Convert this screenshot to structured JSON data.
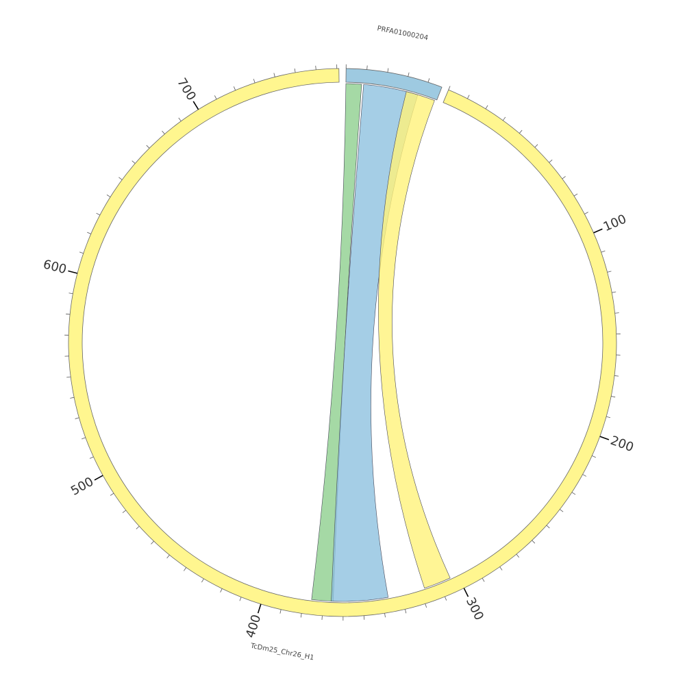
{
  "chart_data": {
    "type": "chord",
    "sectors": [
      {
        "name": "PRFA01000204",
        "length": 47,
        "color": "#9ecae1",
        "major_ticks": []
      },
      {
        "name": "TcDm25_Chr26_H1",
        "length": 771,
        "color": "#fff68f",
        "major_ticks": [
          100,
          200,
          300,
          400,
          500,
          600,
          700
        ]
      }
    ],
    "minor_tick_interval": 10,
    "links": [
      {
        "from": [
          0,
          8
        ],
        "to": [
          365,
          376
        ],
        "color": "#8fcf8f"
      },
      {
        "from": [
          9,
          37
        ],
        "to": [
          337,
          366
        ],
        "color": "#8fc2e0"
      },
      {
        "from": [
          31,
          46
        ],
        "to": [
          304,
          318
        ],
        "color": "#fff27a"
      }
    ]
  }
}
